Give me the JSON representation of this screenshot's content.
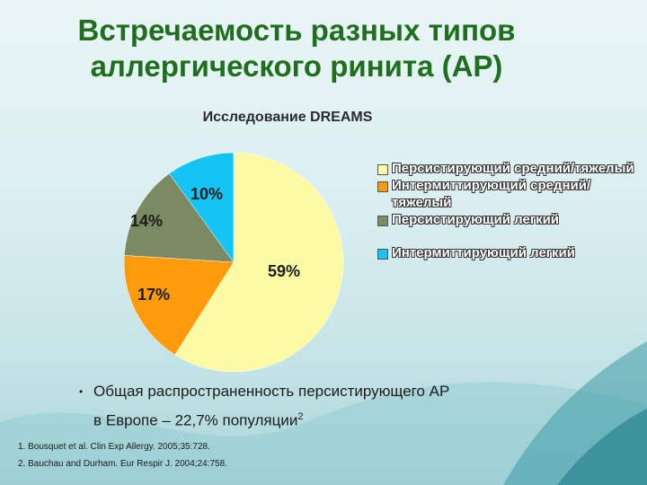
{
  "slide": {
    "title_line1": "Встречаемость разных типов",
    "title_line2": "аллергического ринита (АР)",
    "note_line1": "Общая распространенность персистирующего АР",
    "note_line2": "в Европе – 22,7% популяции",
    "note_sup": "2",
    "references": [
      "1. Bousquet et al. Clin Exp Allergy. 2005;35:728.",
      "2. Bauchau and Durham. Eur Respir J. 2004;24:758."
    ]
  },
  "chart_data": {
    "type": "pie",
    "title": "Исследование DREAMS",
    "legend_position": "right",
    "series": [
      {
        "name": "Персистирующий средний/тяжелый",
        "value": 59,
        "label": "59%",
        "color": "#fbfba6"
      },
      {
        "name": "Интермиттирующий средний/тяжелый",
        "value": 17,
        "label": "17%",
        "color": "#ff9b0a"
      },
      {
        "name": "Персистирующий легкий",
        "value": 14,
        "label": "14%",
        "color": "#7a8b63"
      },
      {
        "name": "Интермиттирующий легкий",
        "value": 10,
        "label": "10%",
        "color": "#14c4f4"
      }
    ]
  }
}
